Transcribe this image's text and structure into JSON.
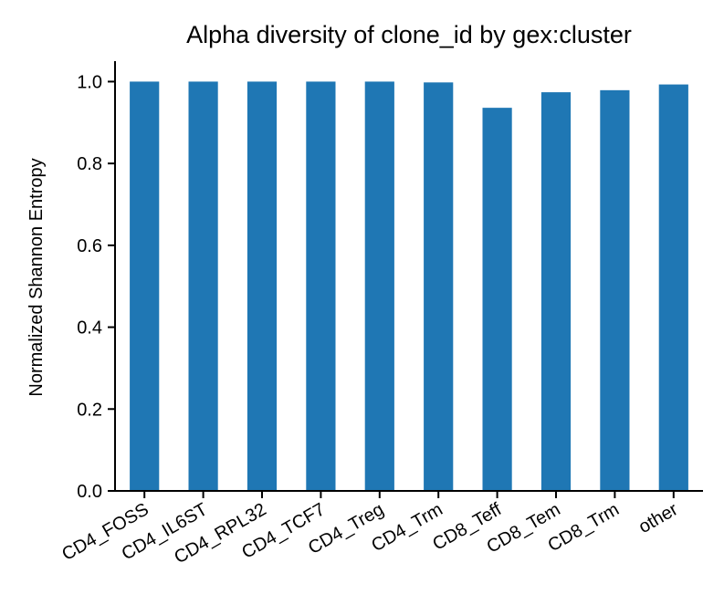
{
  "chart_data": {
    "type": "bar",
    "title": "Alpha diversity of clone_id by gex:cluster",
    "xlabel": "",
    "ylabel": "Normalized Shannon Entropy",
    "categories": [
      "CD4_FOSS",
      "CD4_IL6ST",
      "CD4_RPL32",
      "CD4_TCF7",
      "CD4_Treg",
      "CD4_Trm",
      "CD8_Teff",
      "CD8_Tem",
      "CD8_Trm",
      "other"
    ],
    "values": [
      1.0,
      1.0,
      1.0,
      1.0,
      1.0,
      0.998,
      0.936,
      0.974,
      0.979,
      0.993
    ],
    "ylim": [
      0,
      1.05
    ],
    "yticks": [
      0.0,
      0.2,
      0.4,
      0.6,
      0.8,
      1.0
    ],
    "ytick_labels": [
      "0.0",
      "0.2",
      "0.4",
      "0.6",
      "0.8",
      "1.0"
    ],
    "grid": false,
    "legend": "none",
    "bar_color": "#1f77b4"
  }
}
